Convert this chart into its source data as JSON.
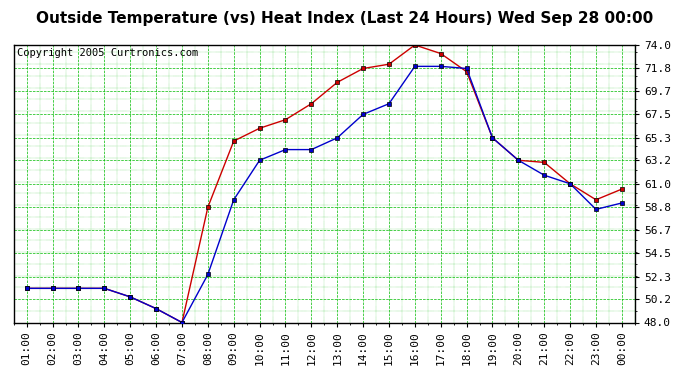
{
  "title": "Outside Temperature (vs) Heat Index (Last 24 Hours) Wed Sep 28 00:00",
  "copyright": "Copyright 2005 Curtronics.com",
  "x_labels": [
    "01:00",
    "02:00",
    "03:00",
    "04:00",
    "05:00",
    "06:00",
    "07:00",
    "08:00",
    "09:00",
    "10:00",
    "11:00",
    "12:00",
    "13:00",
    "14:00",
    "15:00",
    "16:00",
    "17:00",
    "18:00",
    "19:00",
    "20:00",
    "21:00",
    "22:00",
    "23:00",
    "00:00"
  ],
  "blue_data": [
    51.2,
    51.2,
    51.2,
    51.2,
    50.4,
    49.3,
    48.0,
    52.5,
    59.5,
    63.2,
    64.2,
    64.2,
    65.3,
    67.5,
    68.5,
    72.0,
    72.0,
    71.8,
    65.3,
    63.2,
    61.8,
    61.0,
    58.6,
    59.2
  ],
  "red_data": [
    51.2,
    51.2,
    51.2,
    51.2,
    50.4,
    49.3,
    48.0,
    58.8,
    65.0,
    66.2,
    67.0,
    68.5,
    70.5,
    71.8,
    72.2,
    74.0,
    73.2,
    71.5,
    65.3,
    63.2,
    63.0,
    61.0,
    59.5,
    60.5
  ],
  "ylim_min": 48.0,
  "ylim_max": 74.0,
  "yticks": [
    48.0,
    50.2,
    52.3,
    54.5,
    56.7,
    58.8,
    61.0,
    63.2,
    65.3,
    67.5,
    69.7,
    71.8,
    74.0
  ],
  "bg_color": "#ffffff",
  "plot_bg": "#ffffff",
  "grid_color": "#00bb00",
  "blue_color": "#0000cc",
  "red_color": "#cc0000",
  "title_fontsize": 11,
  "copyright_fontsize": 7.5,
  "tick_fontsize": 8
}
